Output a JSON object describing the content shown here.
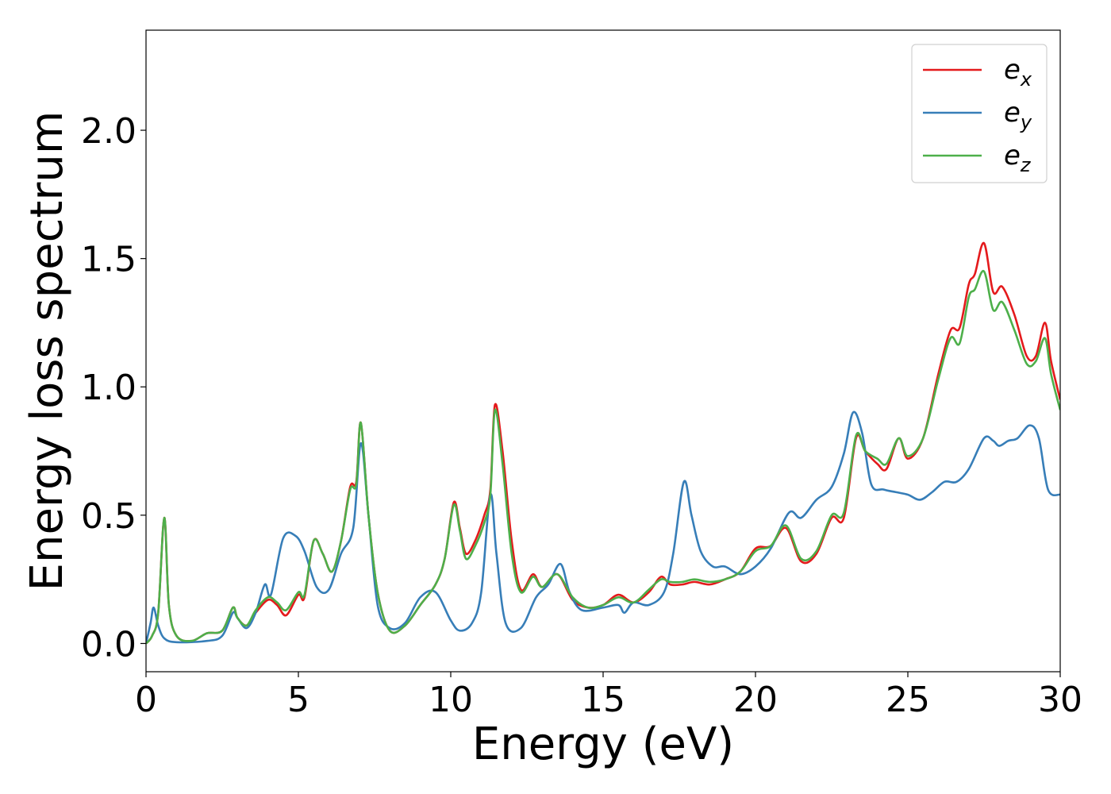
{
  "chart_data": {
    "type": "line",
    "xlabel": "Energy (eV)",
    "ylabel": "Energy loss spectrum",
    "xlim": [
      0,
      30
    ],
    "ylim": [
      -0.11,
      2.39
    ],
    "xticks": [
      0,
      5,
      10,
      15,
      20,
      25,
      30
    ],
    "xtick_labels": [
      "0",
      "5",
      "10",
      "15",
      "20",
      "25",
      "30"
    ],
    "yticks": [
      0.0,
      0.5,
      1.0,
      1.5,
      2.0
    ],
    "ytick_labels": [
      "0.0",
      "0.5",
      "1.0",
      "1.5",
      "2.0"
    ],
    "grid": false,
    "legend_position": "top-right",
    "series": [
      {
        "name": "e",
        "subscript": "x",
        "color": "#e41a1c",
        "points": [
          [
            0,
            0
          ],
          [
            0.2,
            0.03
          ],
          [
            0.4,
            0.12
          ],
          [
            0.6,
            0.49
          ],
          [
            0.75,
            0.15
          ],
          [
            1.0,
            0.03
          ],
          [
            1.5,
            0.01
          ],
          [
            2.0,
            0.04
          ],
          [
            2.5,
            0.05
          ],
          [
            2.85,
            0.14
          ],
          [
            3.0,
            0.1
          ],
          [
            3.3,
            0.07
          ],
          [
            3.6,
            0.12
          ],
          [
            4.0,
            0.17
          ],
          [
            4.3,
            0.15
          ],
          [
            4.6,
            0.11
          ],
          [
            5.0,
            0.19
          ],
          [
            5.2,
            0.18
          ],
          [
            5.5,
            0.4
          ],
          [
            5.8,
            0.35
          ],
          [
            6.1,
            0.28
          ],
          [
            6.4,
            0.4
          ],
          [
            6.7,
            0.61
          ],
          [
            6.9,
            0.63
          ],
          [
            7.05,
            0.86
          ],
          [
            7.3,
            0.5
          ],
          [
            7.6,
            0.2
          ],
          [
            8.0,
            0.05
          ],
          [
            8.5,
            0.07
          ],
          [
            9.0,
            0.15
          ],
          [
            9.5,
            0.23
          ],
          [
            9.8,
            0.33
          ],
          [
            10.1,
            0.55
          ],
          [
            10.3,
            0.45
          ],
          [
            10.5,
            0.35
          ],
          [
            10.8,
            0.4
          ],
          [
            11.1,
            0.5
          ],
          [
            11.3,
            0.6
          ],
          [
            11.45,
            0.93
          ],
          [
            11.7,
            0.75
          ],
          [
            12.0,
            0.4
          ],
          [
            12.3,
            0.21
          ],
          [
            12.7,
            0.27
          ],
          [
            13.0,
            0.22
          ],
          [
            13.5,
            0.27
          ],
          [
            14.0,
            0.17
          ],
          [
            14.5,
            0.14
          ],
          [
            15.0,
            0.15
          ],
          [
            15.5,
            0.19
          ],
          [
            16.0,
            0.16
          ],
          [
            16.5,
            0.2
          ],
          [
            16.9,
            0.26
          ],
          [
            17.2,
            0.23
          ],
          [
            17.6,
            0.23
          ],
          [
            18.0,
            0.24
          ],
          [
            18.5,
            0.23
          ],
          [
            19.0,
            0.25
          ],
          [
            19.5,
            0.28
          ],
          [
            20.0,
            0.37
          ],
          [
            20.5,
            0.38
          ],
          [
            21.0,
            0.45
          ],
          [
            21.5,
            0.32
          ],
          [
            22.0,
            0.35
          ],
          [
            22.5,
            0.49
          ],
          [
            22.9,
            0.49
          ],
          [
            23.3,
            0.8
          ],
          [
            23.6,
            0.75
          ],
          [
            24.0,
            0.7
          ],
          [
            24.3,
            0.68
          ],
          [
            24.7,
            0.8
          ],
          [
            25.0,
            0.72
          ],
          [
            25.5,
            0.8
          ],
          [
            26.0,
            1.05
          ],
          [
            26.4,
            1.22
          ],
          [
            26.7,
            1.23
          ],
          [
            27.0,
            1.4
          ],
          [
            27.2,
            1.44
          ],
          [
            27.5,
            1.56
          ],
          [
            27.8,
            1.37
          ],
          [
            28.1,
            1.39
          ],
          [
            28.5,
            1.28
          ],
          [
            28.9,
            1.12
          ],
          [
            29.2,
            1.12
          ],
          [
            29.5,
            1.25
          ],
          [
            29.7,
            1.1
          ],
          [
            30.0,
            0.95
          ]
        ]
      },
      {
        "name": "e",
        "subscript": "y",
        "color": "#377eb8",
        "points": [
          [
            0,
            0
          ],
          [
            0.15,
            0.08
          ],
          [
            0.25,
            0.14
          ],
          [
            0.4,
            0.07
          ],
          [
            0.6,
            0.02
          ],
          [
            1.0,
            0.005
          ],
          [
            2.0,
            0.01
          ],
          [
            2.5,
            0.03
          ],
          [
            2.85,
            0.12
          ],
          [
            3.0,
            0.1
          ],
          [
            3.3,
            0.06
          ],
          [
            3.6,
            0.12
          ],
          [
            3.9,
            0.23
          ],
          [
            4.1,
            0.19
          ],
          [
            4.5,
            0.41
          ],
          [
            4.9,
            0.42
          ],
          [
            5.2,
            0.36
          ],
          [
            5.6,
            0.22
          ],
          [
            6.0,
            0.21
          ],
          [
            6.4,
            0.35
          ],
          [
            6.8,
            0.45
          ],
          [
            7.05,
            0.78
          ],
          [
            7.3,
            0.5
          ],
          [
            7.6,
            0.15
          ],
          [
            8.0,
            0.06
          ],
          [
            8.5,
            0.08
          ],
          [
            9.0,
            0.18
          ],
          [
            9.5,
            0.2
          ],
          [
            10.0,
            0.09
          ],
          [
            10.3,
            0.05
          ],
          [
            10.7,
            0.08
          ],
          [
            11.0,
            0.2
          ],
          [
            11.3,
            0.58
          ],
          [
            11.5,
            0.35
          ],
          [
            11.8,
            0.08
          ],
          [
            12.3,
            0.06
          ],
          [
            12.8,
            0.18
          ],
          [
            13.2,
            0.23
          ],
          [
            13.6,
            0.31
          ],
          [
            13.9,
            0.2
          ],
          [
            14.3,
            0.13
          ],
          [
            15.0,
            0.14
          ],
          [
            15.5,
            0.15
          ],
          [
            15.7,
            0.12
          ],
          [
            16.0,
            0.16
          ],
          [
            16.5,
            0.15
          ],
          [
            17.0,
            0.2
          ],
          [
            17.3,
            0.35
          ],
          [
            17.65,
            0.63
          ],
          [
            17.9,
            0.5
          ],
          [
            18.2,
            0.36
          ],
          [
            18.6,
            0.3
          ],
          [
            19.0,
            0.3
          ],
          [
            19.5,
            0.27
          ],
          [
            20.0,
            0.3
          ],
          [
            20.5,
            0.37
          ],
          [
            21.1,
            0.51
          ],
          [
            21.5,
            0.49
          ],
          [
            22.0,
            0.56
          ],
          [
            22.5,
            0.61
          ],
          [
            22.9,
            0.74
          ],
          [
            23.2,
            0.9
          ],
          [
            23.5,
            0.82
          ],
          [
            23.8,
            0.62
          ],
          [
            24.2,
            0.6
          ],
          [
            24.6,
            0.59
          ],
          [
            25.0,
            0.58
          ],
          [
            25.4,
            0.56
          ],
          [
            25.8,
            0.59
          ],
          [
            26.2,
            0.63
          ],
          [
            26.6,
            0.63
          ],
          [
            27.0,
            0.68
          ],
          [
            27.5,
            0.8
          ],
          [
            27.8,
            0.79
          ],
          [
            28.0,
            0.77
          ],
          [
            28.3,
            0.79
          ],
          [
            28.6,
            0.8
          ],
          [
            29.0,
            0.85
          ],
          [
            29.3,
            0.8
          ],
          [
            29.6,
            0.6
          ],
          [
            30.0,
            0.58
          ]
        ]
      },
      {
        "name": "e",
        "subscript": "z",
        "color": "#4daf4a",
        "points": [
          [
            0,
            0
          ],
          [
            0.2,
            0.03
          ],
          [
            0.4,
            0.12
          ],
          [
            0.6,
            0.49
          ],
          [
            0.75,
            0.15
          ],
          [
            1.0,
            0.03
          ],
          [
            1.5,
            0.01
          ],
          [
            2.0,
            0.04
          ],
          [
            2.5,
            0.05
          ],
          [
            2.85,
            0.14
          ],
          [
            3.0,
            0.1
          ],
          [
            3.3,
            0.07
          ],
          [
            3.6,
            0.13
          ],
          [
            4.0,
            0.18
          ],
          [
            4.3,
            0.16
          ],
          [
            4.6,
            0.13
          ],
          [
            5.0,
            0.2
          ],
          [
            5.2,
            0.19
          ],
          [
            5.5,
            0.4
          ],
          [
            5.8,
            0.35
          ],
          [
            6.1,
            0.28
          ],
          [
            6.4,
            0.4
          ],
          [
            6.7,
            0.6
          ],
          [
            6.9,
            0.62
          ],
          [
            7.05,
            0.86
          ],
          [
            7.3,
            0.5
          ],
          [
            7.6,
            0.2
          ],
          [
            8.0,
            0.05
          ],
          [
            8.5,
            0.07
          ],
          [
            9.0,
            0.15
          ],
          [
            9.5,
            0.23
          ],
          [
            9.8,
            0.33
          ],
          [
            10.1,
            0.54
          ],
          [
            10.3,
            0.44
          ],
          [
            10.5,
            0.33
          ],
          [
            10.8,
            0.38
          ],
          [
            11.1,
            0.47
          ],
          [
            11.3,
            0.58
          ],
          [
            11.45,
            0.91
          ],
          [
            11.7,
            0.7
          ],
          [
            12.0,
            0.35
          ],
          [
            12.3,
            0.2
          ],
          [
            12.7,
            0.26
          ],
          [
            13.0,
            0.22
          ],
          [
            13.5,
            0.27
          ],
          [
            14.0,
            0.18
          ],
          [
            14.5,
            0.14
          ],
          [
            15.0,
            0.15
          ],
          [
            15.5,
            0.18
          ],
          [
            16.0,
            0.16
          ],
          [
            16.5,
            0.21
          ],
          [
            16.9,
            0.25
          ],
          [
            17.2,
            0.24
          ],
          [
            17.6,
            0.24
          ],
          [
            18.0,
            0.25
          ],
          [
            18.5,
            0.24
          ],
          [
            19.0,
            0.25
          ],
          [
            19.5,
            0.28
          ],
          [
            20.0,
            0.36
          ],
          [
            20.5,
            0.38
          ],
          [
            21.0,
            0.46
          ],
          [
            21.5,
            0.33
          ],
          [
            22.0,
            0.36
          ],
          [
            22.5,
            0.5
          ],
          [
            22.9,
            0.51
          ],
          [
            23.3,
            0.81
          ],
          [
            23.6,
            0.75
          ],
          [
            24.0,
            0.72
          ],
          [
            24.3,
            0.7
          ],
          [
            24.7,
            0.8
          ],
          [
            25.0,
            0.73
          ],
          [
            25.5,
            0.8
          ],
          [
            26.0,
            1.03
          ],
          [
            26.4,
            1.19
          ],
          [
            26.7,
            1.17
          ],
          [
            27.0,
            1.35
          ],
          [
            27.2,
            1.38
          ],
          [
            27.5,
            1.45
          ],
          [
            27.8,
            1.3
          ],
          [
            28.1,
            1.33
          ],
          [
            28.5,
            1.22
          ],
          [
            28.9,
            1.09
          ],
          [
            29.2,
            1.1
          ],
          [
            29.5,
            1.19
          ],
          [
            29.7,
            1.05
          ],
          [
            30.0,
            0.91
          ]
        ]
      }
    ]
  }
}
